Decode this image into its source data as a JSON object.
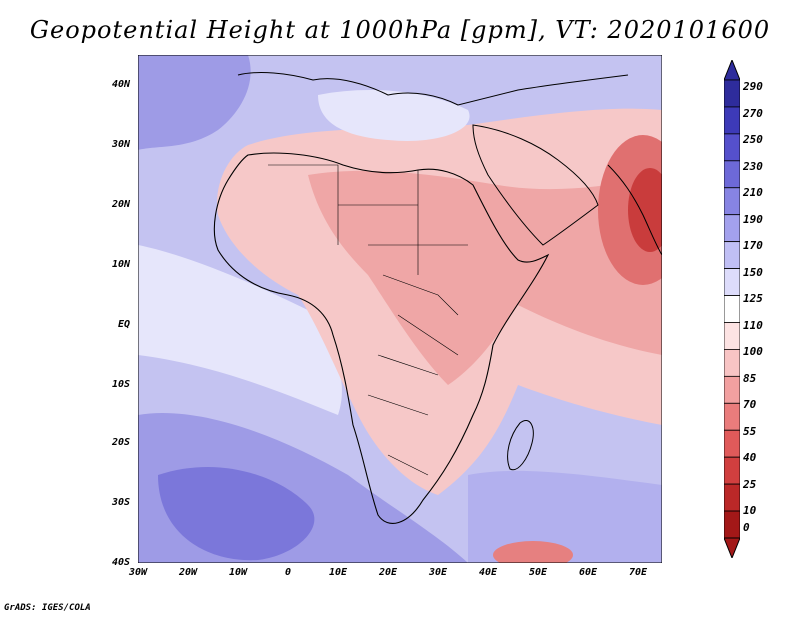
{
  "title": "Geopotential Height at 1000hPa [gpm], VT: 2020101600",
  "credit": "GrADS: IGES/COLA",
  "map": {
    "variable": "Geopotential Height",
    "level": "1000hPa",
    "units": "gpm",
    "valid_time": "2020101600",
    "lon_range": [
      -30,
      75
    ],
    "lat_range": [
      -40,
      45
    ],
    "lat_labels": [
      "40N",
      "30N",
      "20N",
      "10N",
      "EQ",
      "10S",
      "20S",
      "30S",
      "40S"
    ],
    "lat_values": [
      40,
      30,
      20,
      10,
      0,
      -10,
      -20,
      -30,
      -40
    ],
    "lon_labels": [
      "30W",
      "20W",
      "10W",
      "0",
      "10E",
      "20E",
      "30E",
      "40E",
      "50E",
      "60E",
      "70E"
    ],
    "lon_values": [
      -30,
      -20,
      -10,
      0,
      10,
      20,
      30,
      40,
      50,
      60,
      70
    ]
  },
  "colorbar": {
    "levels": [
      "290",
      "270",
      "250",
      "230",
      "210",
      "190",
      "170",
      "150",
      "125",
      "110",
      "100",
      "85",
      "70",
      "55",
      "40",
      "25",
      "10",
      "0"
    ],
    "colors": [
      "#2e2c9c",
      "#3d3ab8",
      "#5550cc",
      "#6d69d8",
      "#8784e3",
      "#a3a1ed",
      "#c0bff5",
      "#dddcfb",
      "#ffffff",
      "#fde3e3",
      "#f8c4c4",
      "#f2a0a0",
      "#ea7c7c",
      "#e05a5a",
      "#d13f3f",
      "#bb2828",
      "#a31818"
    ]
  }
}
